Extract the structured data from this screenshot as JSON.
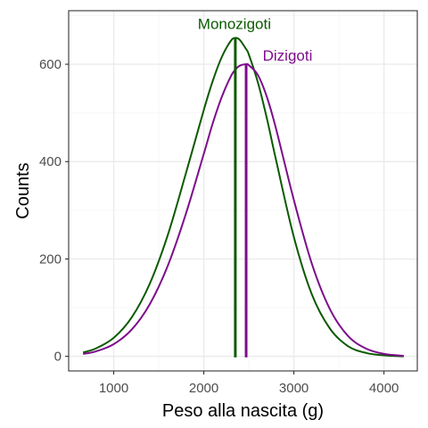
{
  "chart_data": {
    "type": "line",
    "xlabel": "Peso alla nascita (g)",
    "ylabel": "Counts",
    "xlim": [
      500,
      4370
    ],
    "ylim": [
      -30,
      710
    ],
    "x_ticks": [
      1000,
      2000,
      3000,
      4000
    ],
    "y_ticks": [
      0,
      200,
      400,
      600
    ],
    "x_tick_labels": [
      "1000",
      "2000",
      "3000",
      "4000"
    ],
    "y_tick_labels": [
      "0",
      "200",
      "400",
      "600"
    ],
    "grid": true,
    "x": [
      660,
      800,
      1000,
      1200,
      1400,
      1600,
      1800,
      2000,
      2100,
      2200,
      2300,
      2350,
      2400,
      2470,
      2500,
      2600,
      2700,
      2800,
      3000,
      3200,
      3400,
      3600,
      3800,
      4000,
      4220
    ],
    "series": [
      {
        "name": "Monozigoti",
        "color": "#0b5a00",
        "values": [
          8,
          16,
          38,
          80,
          149,
          249,
          375,
          506,
          566,
          615,
          648,
          654,
          650,
          631,
          620,
          563,
          489,
          405,
          245,
          127,
          57,
          21,
          7,
          2,
          0
        ]
      },
      {
        "name": "Dizigoti",
        "color": "#7d0d8b",
        "values": [
          5,
          10,
          25,
          55,
          107,
          186,
          292,
          416,
          479,
          533,
          575,
          589,
          597,
          600,
          598,
          578,
          533,
          469,
          321,
          190,
          97,
          42,
          16,
          5,
          1
        ]
      }
    ],
    "vlines": [
      {
        "x": 2350,
        "color": "#0b5a00"
      },
      {
        "x": 2470,
        "color": "#7d0d8b"
      }
    ],
    "annotations": [
      {
        "text": "Monozigoti",
        "x": 2340,
        "y": 672,
        "color": "#0b5a00"
      },
      {
        "text": "Dizigoti",
        "x": 2930,
        "y": 607,
        "color": "#7d0d8b"
      }
    ],
    "colors": {
      "grid_major": "#ebebeb",
      "grid_minor": "#f5f5f5",
      "panel_border": "#333333"
    }
  }
}
